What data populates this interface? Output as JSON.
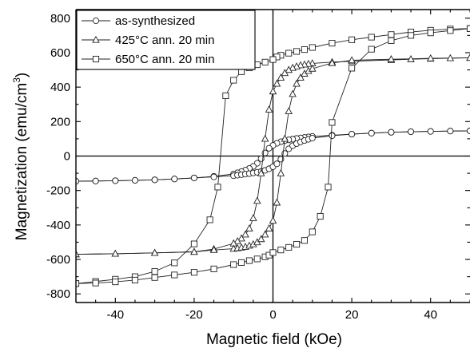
{
  "chart_data": {
    "type": "line",
    "xlabel": "Magnetic field (kOe)",
    "ylabel": "Magnetization (emu/cm",
    "ylabel_superscript": "3",
    "ylabel_suffix": ")",
    "xlim": [
      -50,
      50
    ],
    "ylim": [
      -850,
      850
    ],
    "x_ticks": [
      -40,
      -20,
      0,
      20,
      40
    ],
    "y_ticks": [
      -800,
      -600,
      -400,
      -200,
      0,
      200,
      400,
      600,
      800
    ],
    "grid": false,
    "zero_lines": true,
    "legend_position": "top-left",
    "series": [
      {
        "name": "as-synthesized",
        "marker": "circle",
        "descending": [
          [
            50,
            146
          ],
          [
            45,
            145
          ],
          [
            40,
            143
          ],
          [
            35,
            141
          ],
          [
            30,
            138
          ],
          [
            25,
            133
          ],
          [
            20,
            127
          ],
          [
            15,
            121
          ],
          [
            10,
            114
          ],
          [
            9,
            111
          ],
          [
            8,
            108
          ],
          [
            7,
            105
          ],
          [
            6,
            102
          ],
          [
            5,
            98
          ],
          [
            4,
            94
          ],
          [
            3,
            89
          ],
          [
            2,
            83
          ],
          [
            1,
            74
          ],
          [
            0,
            62
          ],
          [
            -1,
            45
          ],
          [
            -2,
            18
          ],
          [
            -3,
            -15
          ],
          [
            -4,
            -42
          ],
          [
            -5,
            -60
          ],
          [
            -6,
            -72
          ],
          [
            -7,
            -82
          ],
          [
            -8,
            -90
          ],
          [
            -9,
            -97
          ],
          [
            -10,
            -104
          ],
          [
            -15,
            -118
          ],
          [
            -20,
            -127
          ],
          [
            -25,
            -133
          ],
          [
            -30,
            -138
          ],
          [
            -35,
            -141
          ],
          [
            -40,
            -143
          ],
          [
            -45,
            -145
          ],
          [
            -50,
            -146
          ]
        ],
        "ascending": [
          [
            -50,
            -146
          ],
          [
            -45,
            -145
          ],
          [
            -40,
            -143
          ],
          [
            -35,
            -141
          ],
          [
            -30,
            -138
          ],
          [
            -25,
            -133
          ],
          [
            -20,
            -127
          ],
          [
            -15,
            -121
          ],
          [
            -10,
            -114
          ],
          [
            -9,
            -111
          ],
          [
            -8,
            -108
          ],
          [
            -7,
            -105
          ],
          [
            -6,
            -102
          ],
          [
            -5,
            -98
          ],
          [
            -4,
            -94
          ],
          [
            -3,
            -89
          ],
          [
            -2,
            -83
          ],
          [
            -1,
            -74
          ],
          [
            0,
            -62
          ],
          [
            1,
            -45
          ],
          [
            2,
            -18
          ],
          [
            3,
            15
          ],
          [
            4,
            42
          ],
          [
            5,
            60
          ],
          [
            6,
            72
          ],
          [
            7,
            82
          ],
          [
            8,
            90
          ],
          [
            9,
            97
          ],
          [
            10,
            104
          ],
          [
            15,
            118
          ],
          [
            20,
            127
          ],
          [
            25,
            133
          ],
          [
            30,
            138
          ],
          [
            35,
            141
          ],
          [
            40,
            143
          ],
          [
            45,
            145
          ],
          [
            50,
            146
          ]
        ]
      },
      {
        "name": "425°C ann. 20 min",
        "marker": "triangle",
        "descending": [
          [
            50,
            570
          ],
          [
            45,
            568
          ],
          [
            40,
            565
          ],
          [
            35,
            562
          ],
          [
            30,
            558
          ],
          [
            20,
            550
          ],
          [
            15,
            545
          ],
          [
            10,
            538
          ],
          [
            9,
            535
          ],
          [
            8,
            531
          ],
          [
            7,
            527
          ],
          [
            6,
            520
          ],
          [
            5,
            512
          ],
          [
            4,
            500
          ],
          [
            3,
            482
          ],
          [
            2,
            455
          ],
          [
            1,
            420
          ],
          [
            0,
            375
          ],
          [
            -1,
            270
          ],
          [
            -2,
            100
          ],
          [
            -3,
            -100
          ],
          [
            -4,
            -260
          ],
          [
            -5,
            -360
          ],
          [
            -6,
            -420
          ],
          [
            -7,
            -455
          ],
          [
            -8,
            -478
          ],
          [
            -9,
            -494
          ],
          [
            -10,
            -507
          ],
          [
            -15,
            -540
          ],
          [
            -20,
            -556
          ],
          [
            -30,
            -562
          ],
          [
            -40,
            -567
          ],
          [
            -50,
            -570
          ]
        ],
        "ascending": [
          [
            -50,
            -570
          ],
          [
            -40,
            -567
          ],
          [
            -30,
            -562
          ],
          [
            -20,
            -556
          ],
          [
            -15,
            -545
          ],
          [
            -10,
            -538
          ],
          [
            -9,
            -535
          ],
          [
            -8,
            -531
          ],
          [
            -7,
            -527
          ],
          [
            -6,
            -520
          ],
          [
            -5,
            -512
          ],
          [
            -4,
            -500
          ],
          [
            -3,
            -482
          ],
          [
            -2,
            -455
          ],
          [
            -1,
            -420
          ],
          [
            0,
            -375
          ],
          [
            1,
            -270
          ],
          [
            2,
            -100
          ],
          [
            3,
            100
          ],
          [
            4,
            260
          ],
          [
            5,
            360
          ],
          [
            6,
            420
          ],
          [
            7,
            455
          ],
          [
            8,
            478
          ],
          [
            9,
            494
          ],
          [
            10,
            507
          ],
          [
            15,
            540
          ],
          [
            20,
            556
          ],
          [
            30,
            562
          ],
          [
            40,
            567
          ],
          [
            50,
            570
          ]
        ]
      },
      {
        "name": "650°C ann. 20 min",
        "marker": "square",
        "descending": [
          [
            50,
            740
          ],
          [
            45,
            737
          ],
          [
            40,
            730
          ],
          [
            35,
            720
          ],
          [
            30,
            705
          ],
          [
            25,
            690
          ],
          [
            20,
            675
          ],
          [
            15,
            655
          ],
          [
            10,
            630
          ],
          [
            8,
            618
          ],
          [
            6,
            607
          ],
          [
            4,
            597
          ],
          [
            2,
            585
          ],
          [
            1,
            575
          ],
          [
            0,
            560
          ],
          [
            -2,
            545
          ],
          [
            -4,
            530
          ],
          [
            -6,
            512
          ],
          [
            -8,
            490
          ],
          [
            -10,
            440
          ],
          [
            -12,
            350
          ],
          [
            -14,
            -180
          ],
          [
            -16,
            -370
          ],
          [
            -20,
            -510
          ],
          [
            -25,
            -620
          ],
          [
            -30,
            -670
          ],
          [
            -35,
            -700
          ],
          [
            -40,
            -715
          ],
          [
            -45,
            -728
          ],
          [
            -50,
            -740
          ]
        ],
        "ascending": [
          [
            -50,
            -740
          ],
          [
            -45,
            -737
          ],
          [
            -40,
            -730
          ],
          [
            -35,
            -720
          ],
          [
            -30,
            -705
          ],
          [
            -25,
            -690
          ],
          [
            -20,
            -675
          ],
          [
            -15,
            -655
          ],
          [
            -10,
            -630
          ],
          [
            -8,
            -618
          ],
          [
            -6,
            -607
          ],
          [
            -4,
            -597
          ],
          [
            -2,
            -585
          ],
          [
            -1,
            -575
          ],
          [
            0,
            -560
          ],
          [
            2,
            -545
          ],
          [
            4,
            -530
          ],
          [
            6,
            -512
          ],
          [
            8,
            -490
          ],
          [
            10,
            -440
          ],
          [
            12,
            -350
          ],
          [
            14,
            -180
          ],
          [
            15,
            195
          ],
          [
            20,
            510
          ],
          [
            25,
            620
          ],
          [
            30,
            670
          ],
          [
            35,
            700
          ],
          [
            40,
            715
          ],
          [
            45,
            728
          ],
          [
            50,
            740
          ]
        ]
      }
    ]
  }
}
